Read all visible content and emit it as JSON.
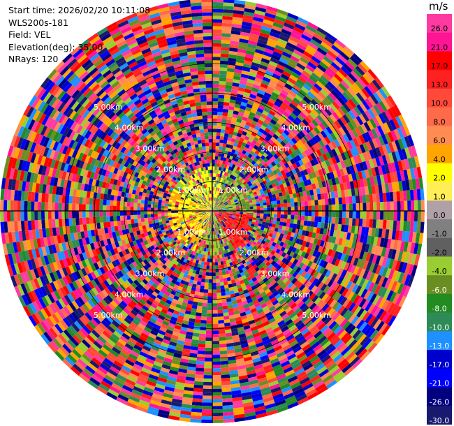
{
  "header": {
    "start_time": "Start time: 2026/02/20 10:11:08",
    "instrument": "WLS200s-181",
    "field": "Field: VEL",
    "elevation": "Elevation(deg): 35.00",
    "nrays": "NRays: 120"
  },
  "colorbar": {
    "unit": "m/s",
    "ticks": [
      "26.0",
      "21.0",
      "17.0",
      "13.0",
      "10.0",
      "8.0",
      "6.0",
      "4.0",
      "2.0",
      "1.0",
      "0.0",
      "-1.0",
      "-2.0",
      "-4.0",
      "-6.0",
      "-8.0",
      "-10.0",
      "-13.0",
      "-17.0",
      "-21.0",
      "-26.0",
      "-30.0"
    ],
    "colors": [
      "#ff3aa0",
      "#ff1493",
      "#ff0000",
      "#ff2020",
      "#ff4a3a",
      "#ff6a4a",
      "#ff8c50",
      "#ffa500",
      "#ffff00",
      "#ffee55",
      "#b0a0a8",
      "#808080",
      "#606060",
      "#9acd32",
      "#6b8e23",
      "#228b22",
      "#2e8b57",
      "#1e90ff",
      "#0000cd",
      "#0000ff",
      "#000080",
      "#191970"
    ]
  },
  "chart_data": {
    "type": "heatmap",
    "projection": "polar (PPI)",
    "field": "VEL",
    "units": "m/s",
    "elevation_deg": 35.0,
    "n_rays": 120,
    "range_rings": [
      {
        "label": "1.00km"
      },
      {
        "label": "2.00km"
      },
      {
        "label": "3.00km"
      },
      {
        "label": "4.00km"
      },
      {
        "label": "5.00km"
      }
    ],
    "color_scale_min": -30.0,
    "color_scale_max": 26.0,
    "max_range_km": 7.2,
    "grid": true
  }
}
